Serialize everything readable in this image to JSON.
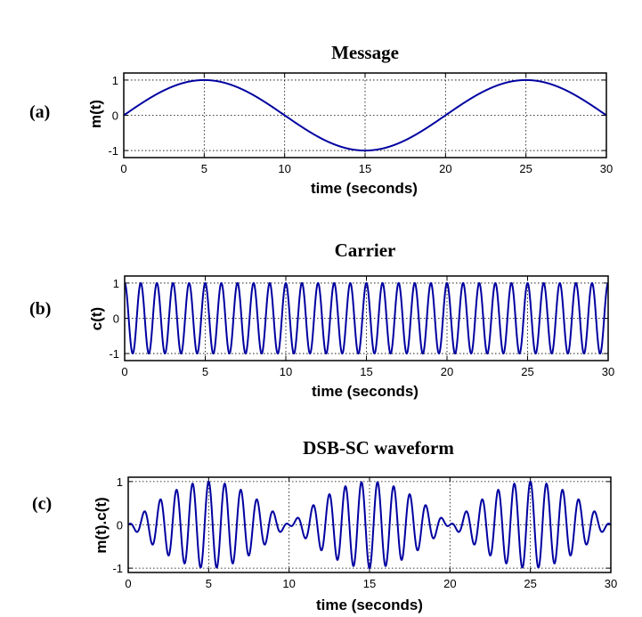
{
  "chart_data": [
    {
      "type": "line",
      "panel_label": "(a)",
      "title": "Message",
      "xlabel": "time (seconds)",
      "ylabel": "m(t)",
      "xlim": [
        0,
        30
      ],
      "ylim": [
        -1.2,
        1.2
      ],
      "xticks": [
        0,
        5,
        10,
        15,
        20,
        25,
        30
      ],
      "yticks": [
        -1,
        0,
        1
      ],
      "grid": true,
      "color": "#0000a0",
      "function": "sin(2*pi*t/20)",
      "x": [
        0,
        2.5,
        5,
        7.5,
        10,
        12.5,
        15,
        17.5,
        20,
        22.5,
        25,
        27.5,
        30
      ],
      "y": [
        0,
        0.707,
        1,
        0.707,
        0,
        -0.707,
        -1,
        -0.707,
        0,
        0.707,
        1,
        0.707,
        0
      ]
    },
    {
      "type": "line",
      "panel_label": "(b)",
      "title": "Carrier",
      "xlabel": "time (seconds)",
      "ylabel": "c(t)",
      "xlim": [
        0,
        30
      ],
      "ylim": [
        -1.2,
        1.2
      ],
      "xticks": [
        0,
        5,
        10,
        15,
        20,
        25,
        30
      ],
      "yticks": [
        -1,
        0,
        1
      ],
      "grid": true,
      "color": "#0000a0",
      "function": "cos(2*pi*t)",
      "x": [
        0,
        0.25,
        0.5,
        0.75,
        1,
        1.25,
        1.5,
        1.75,
        2
      ],
      "y": [
        1,
        0,
        -1,
        0,
        1,
        0,
        -1,
        0,
        1
      ]
    },
    {
      "type": "line",
      "panel_label": "(c)",
      "title": "DSB-SC waveform",
      "xlabel": "time (seconds)",
      "ylabel": "m(t).c(t)",
      "xlim": [
        0,
        30
      ],
      "ylim": [
        -1.1,
        1.1
      ],
      "xticks": [
        0,
        5,
        10,
        15,
        20,
        25,
        30
      ],
      "yticks": [
        -1,
        0,
        1
      ],
      "grid": true,
      "color": "#0000a0",
      "function": "sin(2*pi*t/20)*cos(2*pi*t)",
      "x": [
        0,
        1,
        2,
        3,
        4,
        5,
        6,
        7,
        8,
        9,
        10,
        15,
        20,
        25,
        30
      ],
      "y": [
        0,
        0.309,
        0.588,
        0.809,
        0.951,
        1,
        0.951,
        0.809,
        0.588,
        0.309,
        0,
        -1,
        0,
        1,
        0
      ]
    }
  ]
}
